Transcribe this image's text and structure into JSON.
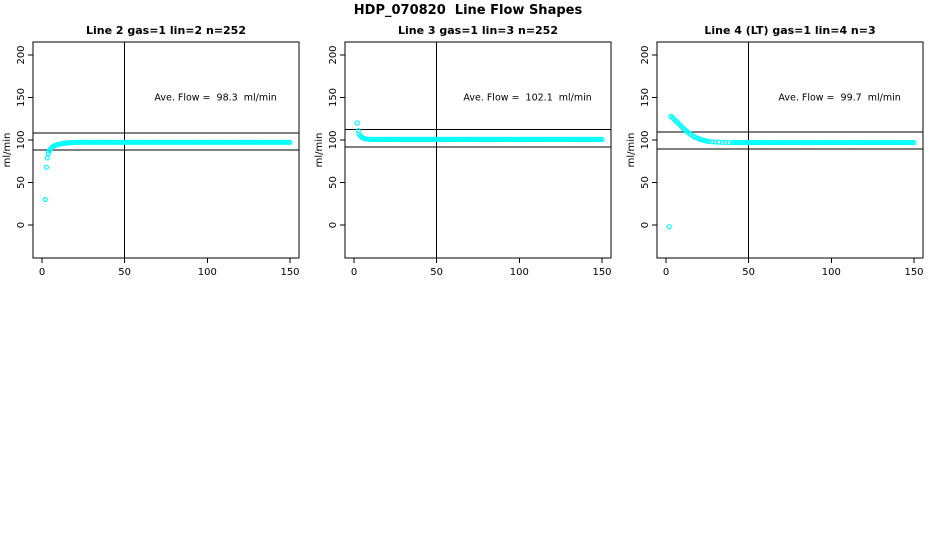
{
  "page_title": "HDP_070820  Line Flow Shapes",
  "colors": {
    "marker": "#00ffff",
    "line": "#000000",
    "text": "#000000",
    "background": "#ffffff"
  },
  "chart_data": [
    {
      "type": "scatter",
      "title": "Line 2 gas=1 lin=2 n=252",
      "annotation": "Ave. Flow =  98.3  ml/min",
      "ave_flow_ml_min": 98.3,
      "xlabel": "",
      "ylabel": "ml/min",
      "xlim": [
        0,
        150
      ],
      "ylim": [
        0,
        200
      ],
      "xticks": [
        0,
        50,
        100,
        150
      ],
      "yticks": [
        0,
        50,
        100,
        150,
        200
      ],
      "grid": false,
      "legend": "none",
      "marker": "open-circle",
      "ref_lines_h": [
        108.1,
        88.5
      ],
      "ref_line_v": 50,
      "annotation_pos": {
        "x": 105,
        "y": 150
      },
      "points": [
        [
          2,
          30
        ],
        [
          2.7,
          68
        ],
        [
          3.2,
          79
        ],
        [
          3.8,
          84
        ],
        [
          4.4,
          87
        ],
        [
          5,
          89
        ],
        [
          5.7,
          90.5
        ],
        [
          6.4,
          92
        ],
        [
          7.2,
          93
        ],
        [
          8,
          93.7
        ],
        [
          9,
          94.4
        ],
        [
          10,
          94.9
        ],
        [
          11,
          95.3
        ],
        [
          12,
          95.7
        ],
        [
          13,
          96
        ],
        [
          14,
          96.3
        ],
        [
          15,
          96.5
        ],
        [
          16,
          96.7
        ],
        [
          17,
          96.9
        ],
        [
          18,
          97
        ],
        [
          19,
          97.1
        ]
      ],
      "tail": {
        "x_start": 20,
        "x_end": 150,
        "step": 1,
        "y": 97.3
      }
    },
    {
      "type": "scatter",
      "title": "Line 3 gas=1 lin=3 n=252",
      "annotation": "Ave. Flow =  102.1  ml/min",
      "ave_flow_ml_min": 102.1,
      "xlabel": "",
      "ylabel": "ml/min",
      "xlim": [
        0,
        150
      ],
      "ylim": [
        0,
        200
      ],
      "xticks": [
        0,
        50,
        100,
        150
      ],
      "yticks": [
        0,
        50,
        100,
        150,
        200
      ],
      "grid": false,
      "legend": "none",
      "marker": "open-circle",
      "ref_lines_h": [
        112.3,
        91.9
      ],
      "ref_line_v": 50,
      "annotation_pos": {
        "x": 105,
        "y": 150
      },
      "points": [
        [
          2,
          120
        ],
        [
          2.6,
          111
        ],
        [
          3.2,
          106.5
        ],
        [
          3.9,
          104.6
        ],
        [
          4.6,
          103.3
        ],
        [
          5.4,
          102.4
        ],
        [
          6.2,
          101.8
        ],
        [
          7,
          101.4
        ],
        [
          8,
          101.1
        ],
        [
          9,
          100.9
        ],
        [
          10,
          100.8
        ]
      ],
      "tail": {
        "x_start": 11,
        "x_end": 150,
        "step": 1,
        "y": 100.7
      }
    },
    {
      "type": "scatter",
      "title": "Line 4 (LT) gas=1 lin=4 n=3",
      "annotation": "Ave. Flow =  99.7  ml/min",
      "ave_flow_ml_min": 99.7,
      "xlabel": "",
      "ylabel": "ml/min",
      "xlim": [
        0,
        150
      ],
      "ylim": [
        0,
        200
      ],
      "xticks": [
        0,
        50,
        100,
        150
      ],
      "yticks": [
        0,
        50,
        100,
        150,
        200
      ],
      "grid": false,
      "legend": "none",
      "marker": "open-circle",
      "ref_lines_h": [
        109.7,
        89.7
      ],
      "ref_line_v": 50,
      "annotation_pos": {
        "x": 105,
        "y": 150
      },
      "points": [
        [
          2,
          -2
        ],
        [
          3,
          128
        ],
        [
          3.8,
          126.5
        ],
        [
          4.6,
          125
        ],
        [
          5.4,
          123.5
        ],
        [
          6.2,
          122
        ],
        [
          7,
          120.5
        ],
        [
          8,
          118.5
        ],
        [
          9,
          116.5
        ],
        [
          10,
          114.5
        ],
        [
          11,
          112.7
        ],
        [
          12,
          111
        ],
        [
          13,
          109.4
        ],
        [
          14,
          107.9
        ],
        [
          15,
          106.5
        ],
        [
          16,
          105.2
        ],
        [
          17,
          104
        ],
        [
          18,
          103
        ],
        [
          19,
          102.1
        ],
        [
          20,
          101.3
        ],
        [
          21,
          100.6
        ],
        [
          22,
          100
        ],
        [
          23,
          99.5
        ],
        [
          24,
          99
        ],
        [
          25,
          98.6
        ],
        [
          26,
          98.3
        ],
        [
          28,
          97.9
        ],
        [
          30,
          97.6
        ],
        [
          32,
          97.4
        ],
        [
          34,
          97.2
        ],
        [
          36,
          97.1
        ],
        [
          38,
          97
        ],
        [
          40,
          96.95
        ]
      ],
      "tail": {
        "x_start": 41,
        "x_end": 150,
        "step": 1,
        "y": 97
      }
    }
  ]
}
